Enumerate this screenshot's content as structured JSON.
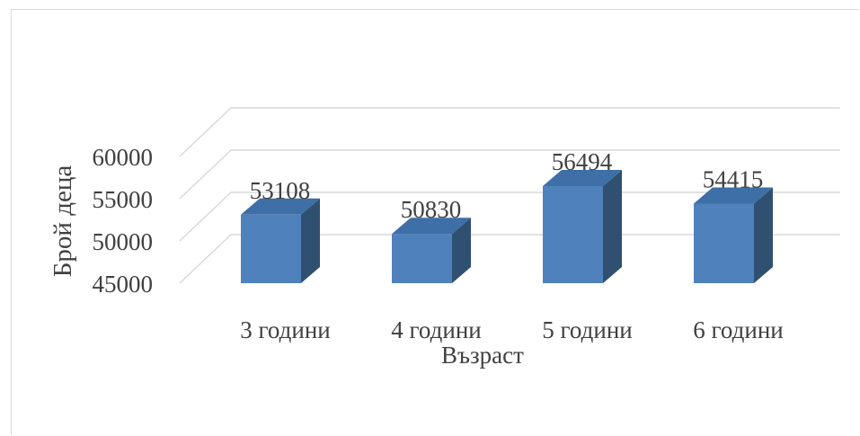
{
  "chart_data": {
    "type": "bar",
    "style": "3d-column",
    "categories": [
      "3 години",
      "4 години",
      "5 години",
      "6 години"
    ],
    "values": [
      53108,
      50830,
      56494,
      54415
    ],
    "data_labels": [
      "53108",
      "50830",
      "56494",
      "54415"
    ],
    "xlabel": "Възраст",
    "ylabel": "Брой деца",
    "ylim": [
      45000,
      60000
    ],
    "yticks": [
      "45000",
      "50000",
      "55000",
      "60000"
    ],
    "grid": true,
    "colors": {
      "bar_front": "#4f81bd",
      "bar_side": "#2f5070",
      "bar_top": "#3e6fa6",
      "grid": "#d9d9d9"
    }
  }
}
